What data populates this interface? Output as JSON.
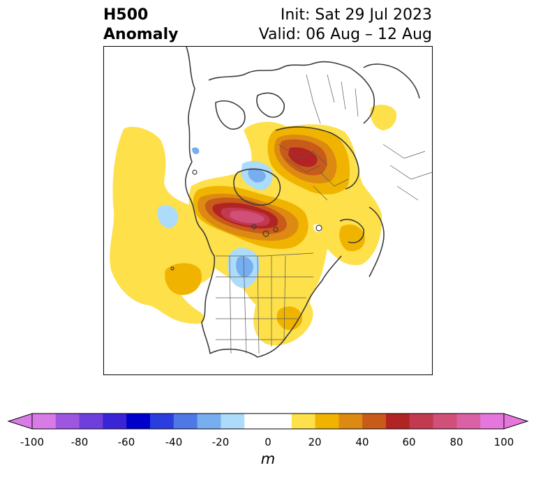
{
  "title": {
    "left_line1": "H500",
    "left_line2": "Anomaly",
    "right_line1": "Init: Sat 29 Jul 2023",
    "right_line2": "Valid: 06 Aug – 12 Aug"
  },
  "map": {
    "projection": "polar stereographic (North America / Arctic)",
    "coastline_color": "#3a3a3a"
  },
  "colorbar": {
    "unit": "m",
    "extend": "both",
    "ticks": [
      "-100",
      "-80",
      "-60",
      "-40",
      "-20",
      "0",
      "20",
      "40",
      "60",
      "80",
      "100"
    ],
    "bins": [
      {
        "range": [
          -100,
          -90
        ],
        "color": "#d97be6"
      },
      {
        "range": [
          -90,
          -80
        ],
        "color": "#9e55e0"
      },
      {
        "range": [
          -80,
          -70
        ],
        "color": "#6e3fdc"
      },
      {
        "range": [
          -70,
          -60
        ],
        "color": "#3a24d6"
      },
      {
        "range": [
          -60,
          -50
        ],
        "color": "#0000cc"
      },
      {
        "range": [
          -50,
          -40
        ],
        "color": "#2a3ee0"
      },
      {
        "range": [
          -40,
          -30
        ],
        "color": "#4f78e6"
      },
      {
        "range": [
          -30,
          -20
        ],
        "color": "#76aef0"
      },
      {
        "range": [
          -20,
          -10
        ],
        "color": "#acdcfa"
      },
      {
        "range": [
          -10,
          10
        ],
        "color": "#ffffff"
      },
      {
        "range": [
          10,
          20
        ],
        "color": "#fde04a"
      },
      {
        "range": [
          20,
          30
        ],
        "color": "#f0b400"
      },
      {
        "range": [
          30,
          40
        ],
        "color": "#dd8a12"
      },
      {
        "range": [
          40,
          50
        ],
        "color": "#c85a1a"
      },
      {
        "range": [
          50,
          60
        ],
        "color": "#b22424"
      },
      {
        "range": [
          60,
          70
        ],
        "color": "#c23a50"
      },
      {
        "range": [
          70,
          80
        ],
        "color": "#d0507a"
      },
      {
        "range": [
          80,
          90
        ],
        "color": "#da62a4"
      },
      {
        "range": [
          90,
          100
        ],
        "color": "#e476dc"
      }
    ],
    "under_color": "#d97be6",
    "over_color": "#e476dc"
  }
}
